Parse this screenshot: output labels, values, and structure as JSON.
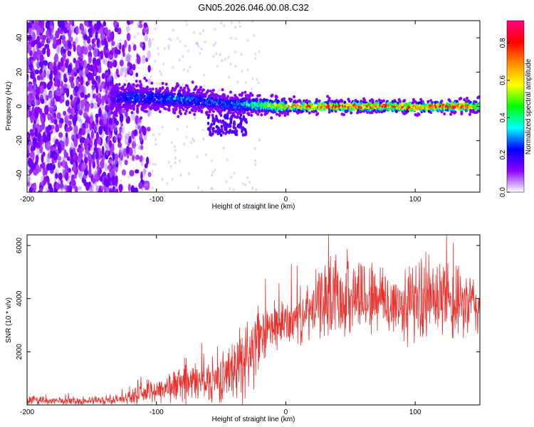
{
  "title": "GN05.2026.046.00.08.C32",
  "chart_data": [
    {
      "type": "heatmap",
      "name": "spectrogram",
      "xlabel": "Height of straight line (km)",
      "ylabel": "Frequency (Hz)",
      "xlim": [
        -200,
        150
      ],
      "ylim": [
        -50,
        50
      ],
      "x_ticks": [
        -200,
        -100,
        0,
        100
      ],
      "x_tick_labels": [
        "-200",
        "-100",
        "0",
        "100"
      ],
      "y_ticks": [
        -40,
        -20,
        0,
        20,
        40
      ],
      "y_tick_labels": [
        "-40",
        "-20",
        "0",
        "20",
        "40"
      ],
      "colorbar": {
        "label": "Normalized spectral amplitude",
        "range": [
          0,
          0.92
        ],
        "ticks": [
          0.0,
          0.2,
          0.4,
          0.6,
          0.8
        ],
        "tick_labels": [
          "0.0",
          "0.2",
          "0.4",
          "0.6",
          "0.8"
        ],
        "colormap": [
          "#ffffff",
          "#8b00ff",
          "#0000ff",
          "#00ffff",
          "#00ff00",
          "#ffff00",
          "#ff8c00",
          "#ff0000",
          "#ff0080"
        ]
      },
      "signal_track": {
        "x": [
          -135,
          -120,
          -100,
          -80,
          -60,
          -45,
          -30,
          -15,
          0,
          20,
          40,
          60,
          80,
          100,
          120,
          140,
          150
        ],
        "center_freq_hz": [
          5,
          5,
          5,
          4,
          3,
          1,
          1,
          0.5,
          0,
          0,
          0,
          0,
          0,
          -0.5,
          0,
          0,
          0
        ],
        "peak_amplitude": [
          0.2,
          0.3,
          0.3,
          0.35,
          0.3,
          0.35,
          0.45,
          0.6,
          0.75,
          0.85,
          0.9,
          0.88,
          0.9,
          0.88,
          0.9,
          0.92,
          0.6
        ]
      },
      "noise_region_x": [
        -200,
        -130
      ]
    },
    {
      "type": "line",
      "name": "snr",
      "xlabel": "Height of straight line (km)",
      "ylabel": "SNR (10 * v/v)",
      "xlim": [
        -200,
        150
      ],
      "ylim": [
        0,
        6400
      ],
      "x_ticks": [
        -200,
        -100,
        0,
        100
      ],
      "x_tick_labels": [
        "-200",
        "-100",
        "0",
        "100"
      ],
      "y_ticks": [
        2000,
        4000,
        6000
      ],
      "y_tick_labels": [
        "2000",
        "4000",
        "6000"
      ],
      "color": "#e8322e",
      "series": [
        {
          "name": "SNR",
          "envelope_x": [
            -200,
            -150,
            -130,
            -120,
            -100,
            -80,
            -60,
            -50,
            -40,
            -35,
            -30,
            -25,
            -20,
            -15,
            -10,
            -5,
            0,
            10,
            20,
            25,
            30,
            40,
            50,
            60,
            70,
            80,
            90,
            100,
            110,
            120,
            130,
            140,
            150
          ],
          "envelope_mean": [
            150,
            150,
            200,
            300,
            550,
            800,
            900,
            1000,
            1300,
            1700,
            1900,
            2100,
            2300,
            2700,
            2900,
            3000,
            3100,
            3300,
            3500,
            3800,
            4000,
            4100,
            4100,
            4100,
            4000,
            3800,
            3700,
            3900,
            4000,
            3900,
            3700,
            3800,
            3700
          ],
          "envelope_spread": [
            150,
            150,
            180,
            250,
            500,
            700,
            800,
            900,
            1100,
            1500,
            1700,
            1500,
            1200,
            1000,
            900,
            900,
            900,
            1000,
            1100,
            1300,
            1500,
            1500,
            1500,
            1600,
            1400,
            1400,
            1400,
            1500,
            1600,
            1500,
            1400,
            1300,
            1200
          ]
        }
      ]
    }
  ]
}
